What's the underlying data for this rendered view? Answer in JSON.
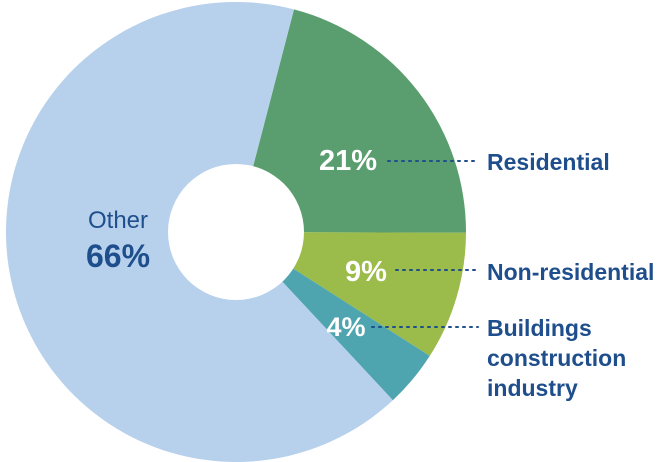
{
  "chart_data": {
    "type": "pie",
    "style": "donut",
    "slices": [
      {
        "label": "Residential",
        "value": 21,
        "display": "21%",
        "color": "#5a9e6f",
        "label_lines": [
          "Residential"
        ]
      },
      {
        "label": "Non-residential",
        "value": 9,
        "display": "9%",
        "color": "#9bbb4a",
        "label_lines": [
          "Non-residential"
        ]
      },
      {
        "label": "Buildings construction industry",
        "value": 4,
        "display": "4%",
        "color": "#4ea5b0",
        "label_lines": [
          "Buildings",
          "construction",
          "industry"
        ]
      },
      {
        "label": "Other",
        "value": 66,
        "display": "66%",
        "color": "#b7d1ec",
        "label_lines": [
          "Other"
        ]
      }
    ],
    "text_color": "#1f4e8c"
  }
}
